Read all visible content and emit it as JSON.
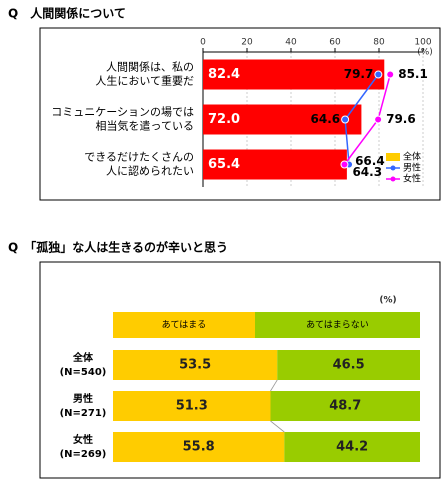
{
  "chart_data": [
    {
      "type": "bar_line",
      "title": "Q　人間関係について",
      "unit": "(%)",
      "categories": [
        [
          "人間関係は、私の",
          "人生において重要だ"
        ],
        [
          "コミュニケーションの場では",
          "相当気を遣っている"
        ],
        [
          "できるだけたくさんの",
          "人に認められたい"
        ]
      ],
      "series": [
        {
          "name": "全体",
          "color": "#ff0000",
          "legend_color": "#ffcc00",
          "values": [
            82.4,
            72.0,
            65.4
          ],
          "value_labels": [
            "82.4",
            "72.0",
            "65.4"
          ]
        },
        {
          "name": "男性",
          "color": "#3366ff",
          "values": [
            79.7,
            64.6,
            66.4
          ]
        },
        {
          "name": "女性",
          "color": "#ff00ff",
          "values": [
            85.1,
            79.6,
            64.3
          ]
        }
      ],
      "xlim": [
        0,
        100
      ],
      "xticks": [
        0,
        20,
        40,
        60,
        80,
        100
      ],
      "grid": true
    },
    {
      "type": "stacked_bar",
      "title": "Q　「孤独」な人は生きるのが辛いと思う",
      "unit": "(%)",
      "categories": [
        [
          "全体",
          "(N=540)"
        ],
        [
          "男性",
          "(N=271)"
        ],
        [
          "女性",
          "(N=269)"
        ]
      ],
      "series": [
        {
          "name": "あてはまる",
          "color": "#ffcc00",
          "values": [
            53.5,
            51.3,
            55.8
          ]
        },
        {
          "name": "あてはまらない",
          "color": "#99cc00",
          "values": [
            46.5,
            48.7,
            44.2
          ]
        }
      ],
      "xlim": [
        0,
        100
      ]
    }
  ]
}
